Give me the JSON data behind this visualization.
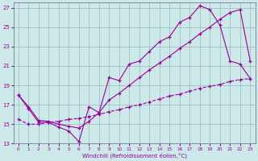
{
  "xlabel": "Windchill (Refroidissement éolien,°C)",
  "background_color": "#cce8e8",
  "grid_color": "#99bbbb",
  "line_color": "#990099",
  "xlim": [
    -0.5,
    23.5
  ],
  "ylim": [
    13,
    27.5
  ],
  "yticks": [
    13,
    15,
    17,
    19,
    21,
    23,
    25,
    27
  ],
  "xticks": [
    0,
    1,
    2,
    3,
    4,
    5,
    6,
    7,
    8,
    9,
    10,
    11,
    12,
    13,
    14,
    15,
    16,
    17,
    18,
    19,
    20,
    21,
    22,
    23
  ],
  "line1_x": [
    0,
    1,
    2,
    3,
    4,
    5,
    6,
    7,
    8,
    9,
    10,
    11,
    12,
    13,
    14,
    15,
    16,
    17,
    18,
    19,
    20,
    21,
    22,
    23
  ],
  "line1_y": [
    18.0,
    16.6,
    15.2,
    15.2,
    14.7,
    14.3,
    13.2,
    16.8,
    16.2,
    19.8,
    19.5,
    21.2,
    21.5,
    22.5,
    23.5,
    24.0,
    25.5,
    26.0,
    27.2,
    26.8,
    25.2,
    21.5,
    21.2,
    19.7
  ],
  "line2_x": [
    0,
    1,
    2,
    3,
    4,
    5,
    6,
    7,
    8,
    9,
    10,
    11,
    12,
    13,
    14,
    15,
    16,
    17,
    18,
    19,
    20,
    21,
    22,
    23
  ],
  "line2_y": [
    18.0,
    16.8,
    15.4,
    15.3,
    15.0,
    14.8,
    14.6,
    15.3,
    16.2,
    17.5,
    18.2,
    19.0,
    19.8,
    20.6,
    21.3,
    22.0,
    22.8,
    23.5,
    24.3,
    25.0,
    25.8,
    26.5,
    26.8,
    21.5
  ],
  "line3_x": [
    0,
    1,
    2,
    3,
    4,
    5,
    6,
    7,
    8,
    9,
    10,
    11,
    12,
    13,
    14,
    15,
    16,
    17,
    18,
    19,
    20,
    21,
    22,
    23
  ],
  "line3_y": [
    15.5,
    15.0,
    15.0,
    15.2,
    15.3,
    15.5,
    15.6,
    15.8,
    16.0,
    16.3,
    16.5,
    16.8,
    17.0,
    17.3,
    17.6,
    17.9,
    18.1,
    18.4,
    18.7,
    18.9,
    19.1,
    19.4,
    19.6,
    19.7
  ]
}
